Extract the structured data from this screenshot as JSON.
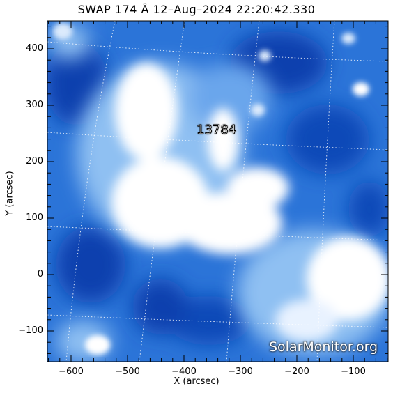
{
  "title": "SWAP 174 Å 12–Aug–2024 22:20:42.330",
  "xlabel": "X (arcsec)",
  "ylabel": "Y (arcsec)",
  "x_ticks": [
    "−600",
    "−500",
    "−400",
    "−300",
    "−200",
    "−100"
  ],
  "y_ticks": [
    "400",
    "300",
    "200",
    "100",
    "0",
    "−100"
  ],
  "active_region": "13784",
  "watermark": "SolarMonitor.org",
  "colors": {
    "dark_blue": "#0a3fae",
    "mid_blue": "#2b74d8",
    "light_blue": "#8fc0f2",
    "bright": "#ffffff"
  }
}
